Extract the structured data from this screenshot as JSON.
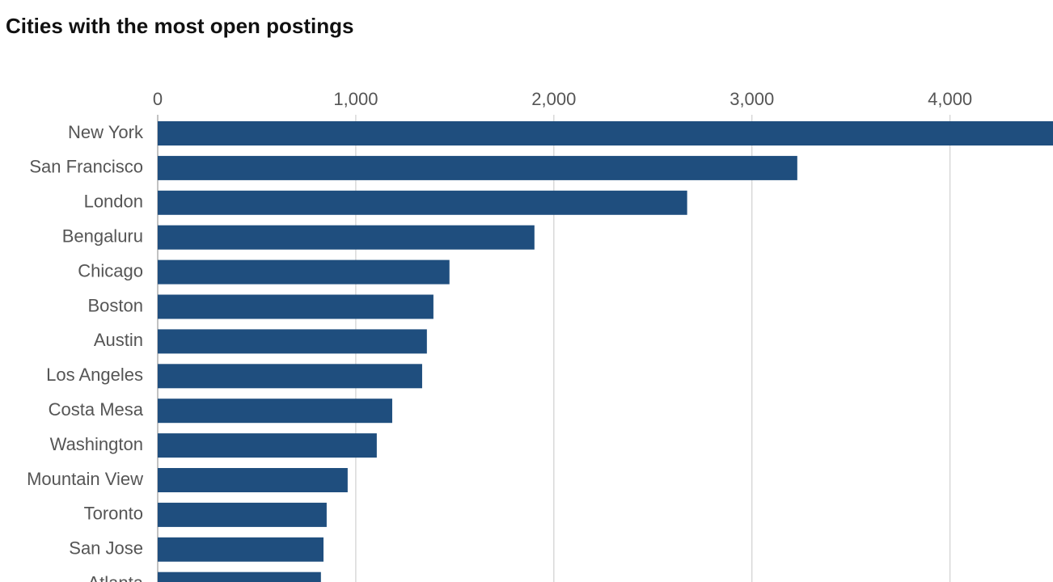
{
  "chart_data": {
    "type": "bar",
    "orientation": "horizontal",
    "title": "Cities with the most open postings",
    "categories": [
      "New York",
      "San Francisco",
      "London",
      "Bengaluru",
      "Chicago",
      "Boston",
      "Austin",
      "Los Angeles",
      "Costa Mesa",
      "Washington",
      "Mountain View",
      "Toronto",
      "San Jose",
      "Atlanta"
    ],
    "values": [
      4520,
      3229,
      2673,
      1902,
      1473,
      1392,
      1359,
      1335,
      1184,
      1106,
      959,
      853,
      837,
      824
    ],
    "color": "#1f4e7e",
    "xlim": [
      0,
      4520
    ],
    "xticks": [
      0,
      {
        "value": 1000,
        "label": "1,000"
      },
      {
        "value": 2000,
        "label": "2,000"
      },
      {
        "value": 3000,
        "label": "3,000"
      },
      {
        "value": 4000,
        "label": "4,000"
      }
    ],
    "grid": true
  }
}
